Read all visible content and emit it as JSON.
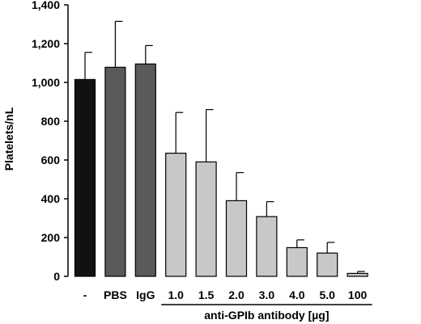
{
  "chart_data": {
    "type": "bar",
    "categories": [
      "-",
      "PBS",
      "IgG",
      "1.0",
      "1.5",
      "2.0",
      "3.0",
      "4.0",
      "5.0",
      "100"
    ],
    "values": [
      1015,
      1078,
      1095,
      635,
      590,
      390,
      308,
      148,
      120,
      15
    ],
    "error_upper": [
      1155,
      1315,
      1190,
      845,
      860,
      535,
      385,
      188,
      175,
      25
    ],
    "colors": [
      "#111111",
      "#5a5a5a",
      "#5a5a5a",
      "#c8c8c8",
      "#c8c8c8",
      "#c8c8c8",
      "#c8c8c8",
      "#c8c8c8",
      "#c8c8c8",
      "#c8c8c8"
    ],
    "ylabel": "Platelets/nL",
    "xlabel": "",
    "ylim": [
      0,
      1400
    ],
    "yticks": [
      "0",
      "200",
      "400",
      "600",
      "800",
      "1,000",
      "1,200",
      "1,400"
    ],
    "group_label": "anti-GPIb antibody [µg]",
    "group_start_index": 3,
    "grid": false,
    "title": ""
  }
}
